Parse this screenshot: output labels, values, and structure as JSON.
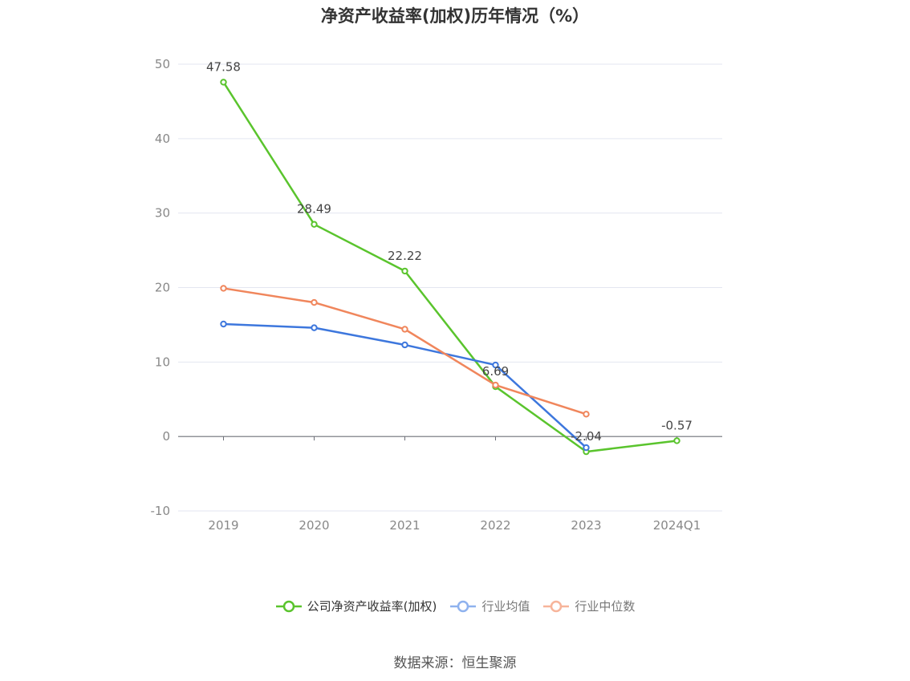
{
  "chart_data": {
    "type": "line",
    "title": "净资产收益率(加权)历年情况（%）",
    "categories": [
      "2019",
      "2020",
      "2021",
      "2022",
      "2023",
      "2024Q1"
    ],
    "ylim": [
      -10,
      50
    ],
    "yticks": [
      -10,
      0,
      10,
      20,
      30,
      40,
      50
    ],
    "grid": true,
    "legend_position": "bottom",
    "series": [
      {
        "name": "公司净资产收益率(加权)",
        "color": "#5ac42d",
        "values": [
          47.58,
          28.49,
          22.22,
          6.69,
          -2.04,
          -0.57
        ],
        "labels": [
          "47.58",
          "28.49",
          "22.22",
          "6.69",
          "-2.04",
          "-0.57"
        ]
      },
      {
        "name": "行业均值",
        "color": "#3d77dd",
        "values": [
          15.1,
          14.6,
          12.3,
          9.6,
          -1.5,
          null
        ]
      },
      {
        "name": "行业中位数",
        "color": "#f0865c",
        "values": [
          19.9,
          18.0,
          14.4,
          6.9,
          3.0,
          null
        ]
      }
    ]
  },
  "legend_colors": [
    "#5ac42d",
    "#8fb2ee",
    "#f7b49a"
  ],
  "source": "数据来源：恒生聚源"
}
